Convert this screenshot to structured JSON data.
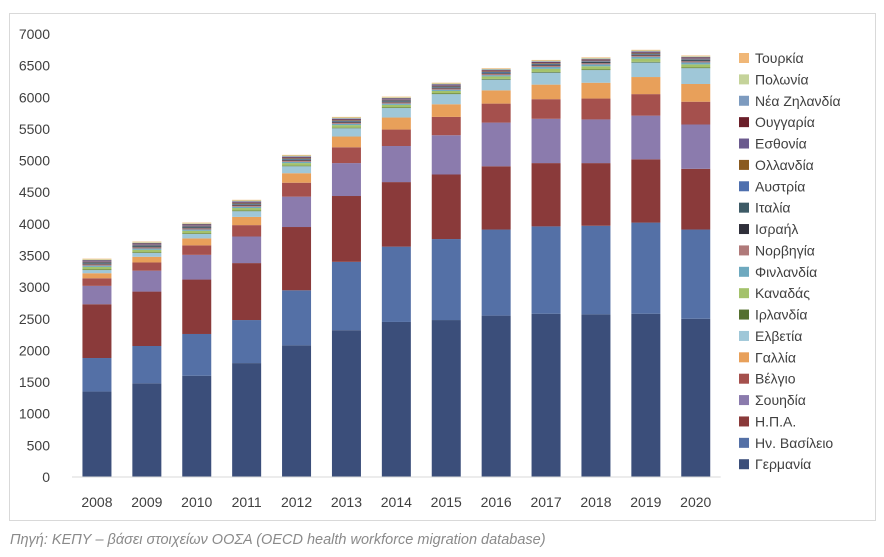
{
  "chart_data": {
    "type": "bar",
    "stacked": true,
    "title": "",
    "xlabel": "",
    "ylabel": "",
    "ylim": [
      0,
      7000
    ],
    "yticks": [
      0,
      500,
      1000,
      1500,
      2000,
      2500,
      3000,
      3500,
      4000,
      4500,
      5000,
      5500,
      6000,
      6500,
      7000
    ],
    "grid": false,
    "legend_position": "right",
    "categories": [
      "2008",
      "2009",
      "2010",
      "2011",
      "2012",
      "2013",
      "2014",
      "2015",
      "2016",
      "2017",
      "2018",
      "2019",
      "2020"
    ],
    "series": [
      {
        "name": "Γερμανία",
        "color": "#3b4e7a",
        "values": [
          1350,
          1480,
          1600,
          1800,
          2080,
          2320,
          2450,
          2480,
          2550,
          2580,
          2570,
          2580,
          2500
        ]
      },
      {
        "name": "Ην. Βασίλειο",
        "color": "#5470a6",
        "values": [
          530,
          590,
          660,
          680,
          870,
          1080,
          1190,
          1280,
          1360,
          1380,
          1400,
          1440,
          1410
        ]
      },
      {
        "name": "Η.Π.Α.",
        "color": "#8a3a3a",
        "values": [
          850,
          860,
          860,
          900,
          1000,
          1040,
          1020,
          1020,
          1000,
          1000,
          990,
          1000,
          960
        ]
      },
      {
        "name": "Σουηδία",
        "color": "#8b7bad",
        "values": [
          290,
          330,
          390,
          420,
          480,
          520,
          570,
          620,
          690,
          700,
          690,
          690,
          700
        ]
      },
      {
        "name": "Βέλγιο",
        "color": "#a5504d",
        "values": [
          120,
          130,
          150,
          180,
          220,
          250,
          260,
          290,
          300,
          310,
          330,
          340,
          360
        ]
      },
      {
        "name": "Γαλλία",
        "color": "#e8a05a",
        "values": [
          80,
          90,
          110,
          130,
          150,
          170,
          190,
          200,
          210,
          230,
          250,
          270,
          280
        ]
      },
      {
        "name": "Ελβετία",
        "color": "#9fc7d8",
        "values": [
          50,
          60,
          70,
          90,
          110,
          130,
          150,
          160,
          170,
          190,
          200,
          230,
          250
        ]
      },
      {
        "name": "Ιρλανδία",
        "color": "#55702f",
        "values": [
          10,
          10,
          10,
          10,
          10,
          10,
          10,
          10,
          10,
          10,
          10,
          10,
          10
        ]
      },
      {
        "name": "Καναδάς",
        "color": "#a4c26b",
        "values": [
          40,
          40,
          40,
          40,
          40,
          40,
          40,
          40,
          40,
          50,
          50,
          50,
          50
        ]
      },
      {
        "name": "Φινλανδία",
        "color": "#6ea9bf",
        "values": [
          20,
          20,
          20,
          20,
          20,
          20,
          20,
          20,
          20,
          30,
          30,
          30,
          30
        ]
      },
      {
        "name": "Νορβηγία",
        "color": "#b07a7a",
        "values": [
          20,
          20,
          20,
          20,
          20,
          20,
          20,
          20,
          20,
          20,
          20,
          20,
          20
        ]
      },
      {
        "name": "Ισραήλ",
        "color": "#2f2f3a",
        "values": [
          10,
          10,
          10,
          10,
          10,
          10,
          10,
          10,
          10,
          10,
          10,
          10,
          10
        ]
      },
      {
        "name": "Ιταλία",
        "color": "#3d5a66",
        "values": [
          10,
          10,
          10,
          10,
          10,
          10,
          10,
          10,
          10,
          10,
          10,
          10,
          10
        ]
      },
      {
        "name": "Αυστρία",
        "color": "#4e6fae",
        "values": [
          10,
          10,
          10,
          10,
          10,
          10,
          10,
          10,
          10,
          10,
          10,
          10,
          10
        ]
      },
      {
        "name": "Ολλανδία",
        "color": "#8a5a20",
        "values": [
          10,
          10,
          10,
          10,
          10,
          10,
          10,
          10,
          10,
          10,
          10,
          10,
          10
        ]
      },
      {
        "name": "Εσθονία",
        "color": "#6b5a8e",
        "values": [
          10,
          10,
          10,
          10,
          10,
          10,
          10,
          10,
          10,
          10,
          10,
          10,
          10
        ]
      },
      {
        "name": "Ουγγαρία",
        "color": "#6b1f2a",
        "values": [
          10,
          10,
          10,
          10,
          10,
          10,
          10,
          10,
          10,
          10,
          10,
          10,
          10
        ]
      },
      {
        "name": "Νέα Ζηλανδία",
        "color": "#7d9bbf",
        "values": [
          10,
          10,
          10,
          10,
          10,
          10,
          10,
          10,
          10,
          10,
          10,
          10,
          10
        ]
      },
      {
        "name": "Πολωνία",
        "color": "#c5d39a",
        "values": [
          10,
          10,
          10,
          10,
          10,
          10,
          10,
          10,
          10,
          10,
          10,
          10,
          10
        ]
      },
      {
        "name": "Τουρκία",
        "color": "#f0b777",
        "values": [
          10,
          10,
          10,
          10,
          10,
          10,
          10,
          10,
          10,
          10,
          10,
          10,
          10
        ]
      }
    ]
  },
  "source_note": "Πηγή: ΚΕΠΥ – βάσει στοιχείων ΟΟΣΑ (OECD health workforce migration database)"
}
